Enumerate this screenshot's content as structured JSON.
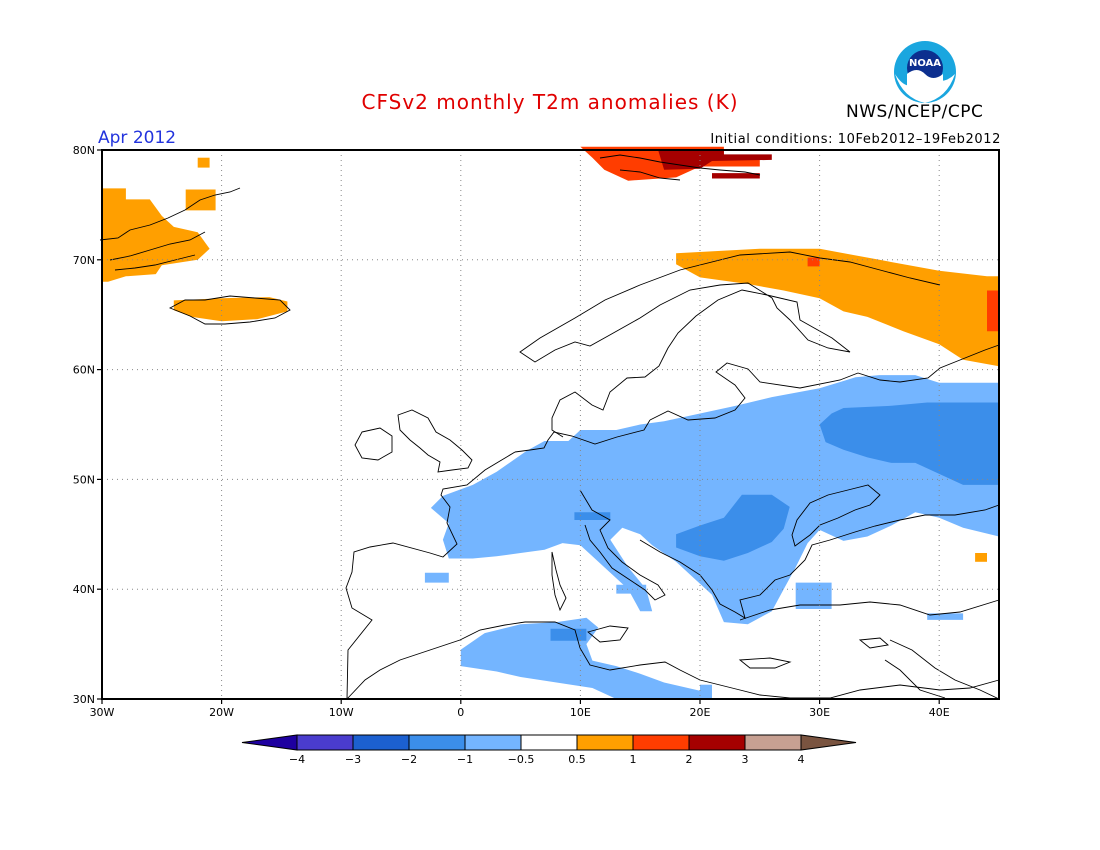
{
  "header": {
    "title": "CFSv2 monthly T2m anomalies (K)",
    "period": "Apr 2012",
    "initial_conditions": "Initial conditions: 10Feb2012–19Feb2012",
    "agency": "NWS/NCEP/CPC",
    "logo_text": "NOAA"
  },
  "map": {
    "lon_range": [
      -30,
      45
    ],
    "lat_range": [
      30,
      80
    ],
    "lat_labels": [
      {
        "lat": 80,
        "text": "80N"
      },
      {
        "lat": 70,
        "text": "70N"
      },
      {
        "lat": 60,
        "text": "60N"
      },
      {
        "lat": 50,
        "text": "50N"
      },
      {
        "lat": 40,
        "text": "40N"
      },
      {
        "lat": 30,
        "text": "30N"
      }
    ],
    "lon_labels": [
      {
        "lon": -30,
        "text": "30W"
      },
      {
        "lon": -20,
        "text": "20W"
      },
      {
        "lon": -10,
        "text": "10W"
      },
      {
        "lon": 0,
        "text": "0"
      },
      {
        "lon": 10,
        "text": "10E"
      },
      {
        "lon": 20,
        "text": "20E"
      },
      {
        "lon": 30,
        "text": "30E"
      },
      {
        "lon": 40,
        "text": "40E"
      }
    ],
    "grid": "dotted",
    "anomaly_regions": [
      {
        "name": "greenland-east-warm",
        "class": "0.5 to 1",
        "color": "#ff9f00",
        "lonlat": [
          [
            -30,
            76.5
          ],
          [
            -28,
            76.5
          ],
          [
            -28,
            75.5
          ],
          [
            -26,
            75.5
          ],
          [
            -25,
            74
          ],
          [
            -24,
            73
          ],
          [
            -22,
            72.5
          ],
          [
            -21,
            71
          ],
          [
            -22,
            70
          ],
          [
            -25,
            69.5
          ],
          [
            -25.5,
            68.7
          ],
          [
            -28,
            68.5
          ],
          [
            -29.5,
            68
          ],
          [
            -30,
            68
          ]
        ]
      },
      {
        "name": "greenland-north-warm",
        "class": "0.5 to 1",
        "color": "#ff9f00",
        "lonlat": [
          [
            -22,
            79.3
          ],
          [
            -21,
            79.3
          ],
          [
            -21,
            78.4
          ],
          [
            -22,
            78.4
          ]
        ]
      },
      {
        "name": "greenland-ne-warm",
        "class": "0.5 to 1",
        "color": "#ff9f00",
        "lonlat": [
          [
            -23,
            76.4
          ],
          [
            -20.5,
            76.4
          ],
          [
            -20.5,
            74.5
          ],
          [
            -23,
            74.5
          ]
        ]
      },
      {
        "name": "iceland-warm",
        "class": "0.5 to 1",
        "color": "#ff9f00",
        "lonlat": [
          [
            -24,
            66.3
          ],
          [
            -20,
            66.5
          ],
          [
            -16,
            66.6
          ],
          [
            -14.5,
            66.2
          ],
          [
            -14.5,
            65.3
          ],
          [
            -17,
            64.6
          ],
          [
            -20,
            64.4
          ],
          [
            -22.5,
            64.8
          ],
          [
            -24,
            65.4
          ]
        ]
      },
      {
        "name": "svalbard-warm",
        "class": "1 to 2",
        "color": "#ff3d00",
        "lonlat": [
          [
            10,
            80.3
          ],
          [
            22,
            80.3
          ],
          [
            22,
            79.4
          ],
          [
            25,
            79.3
          ],
          [
            25,
            78.5
          ],
          [
            20,
            78.5
          ],
          [
            18,
            77.5
          ],
          [
            14,
            77.2
          ],
          [
            12,
            78.2
          ],
          [
            11,
            79.3
          ]
        ]
      },
      {
        "name": "svalbard-core",
        "class": "2 to 3",
        "color": "#a50000",
        "lonlat": [
          [
            16.5,
            80
          ],
          [
            22,
            80
          ],
          [
            22,
            79.6
          ],
          [
            26,
            79.6
          ],
          [
            26,
            79.1
          ],
          [
            21,
            79
          ],
          [
            20,
            78.3
          ],
          [
            17,
            78.2
          ]
        ]
      },
      {
        "name": "svalbard-east",
        "class": "2 to 3",
        "color": "#a50000",
        "lonlat": [
          [
            21,
            77.9
          ],
          [
            25,
            77.9
          ],
          [
            25,
            77.4
          ],
          [
            21,
            77.4
          ]
        ]
      },
      {
        "name": "arctic-russia-warm",
        "class": "0.5 to 1",
        "color": "#ff9f00",
        "lonlat": [
          [
            18,
            70.6
          ],
          [
            25,
            71
          ],
          [
            30,
            71
          ],
          [
            35,
            70
          ],
          [
            40,
            69
          ],
          [
            44,
            68.5
          ],
          [
            45,
            68.5
          ],
          [
            45,
            60.3
          ],
          [
            42,
            60.9
          ],
          [
            40,
            62.3
          ],
          [
            37,
            63.5
          ],
          [
            34,
            64.8
          ],
          [
            32,
            65.3
          ],
          [
            30,
            66.5
          ],
          [
            27,
            67.2
          ],
          [
            24,
            67.8
          ],
          [
            20,
            68.4
          ],
          [
            18,
            69.6
          ]
        ]
      },
      {
        "name": "arctic-russia-hot1",
        "class": "1 to 2",
        "color": "#ff3d00",
        "lonlat": [
          [
            29,
            70.2
          ],
          [
            30,
            70.2
          ],
          [
            30,
            69.4
          ],
          [
            29,
            69.4
          ]
        ]
      },
      {
        "name": "arctic-russia-hot2",
        "class": "1 to 2",
        "color": "#ff3d00",
        "lonlat": [
          [
            44,
            67.2
          ],
          [
            45,
            67.2
          ],
          [
            45,
            63.5
          ],
          [
            44,
            63.5
          ]
        ]
      },
      {
        "name": "central-europe-cool",
        "class": "-1 to -0.5",
        "color": "#74b5ff",
        "lonlat": [
          [
            -1.5,
            48.5
          ],
          [
            1,
            49.5
          ],
          [
            3,
            50.7
          ],
          [
            5.5,
            52.6
          ],
          [
            7,
            53.5
          ],
          [
            9,
            53.5
          ],
          [
            10,
            54.5
          ],
          [
            13,
            54.5
          ],
          [
            15,
            55
          ],
          [
            17,
            55.3
          ],
          [
            20,
            56
          ],
          [
            23,
            56.7
          ],
          [
            26,
            57.5
          ],
          [
            30,
            58.3
          ],
          [
            33,
            59.3
          ],
          [
            35,
            59.5
          ],
          [
            38,
            59.5
          ],
          [
            40,
            58.8
          ],
          [
            45,
            58.8
          ],
          [
            45,
            44.8
          ],
          [
            42,
            45.6
          ],
          [
            40,
            46.5
          ],
          [
            38,
            47
          ],
          [
            36,
            45.8
          ],
          [
            34,
            44.8
          ],
          [
            32,
            44.4
          ],
          [
            30,
            45.4
          ],
          [
            29,
            44.2
          ],
          [
            28,
            42
          ],
          [
            27,
            40
          ],
          [
            26,
            38
          ],
          [
            24,
            36.8
          ],
          [
            22,
            37
          ],
          [
            21,
            39.5
          ],
          [
            19.5,
            41
          ],
          [
            18,
            42.5
          ],
          [
            16,
            44
          ],
          [
            15,
            45
          ],
          [
            13.5,
            45.6
          ],
          [
            12.5,
            44.5
          ],
          [
            14,
            42
          ],
          [
            15.5,
            40
          ],
          [
            16,
            38
          ],
          [
            15,
            38
          ],
          [
            14,
            40
          ],
          [
            13,
            41
          ],
          [
            11,
            43
          ],
          [
            10,
            44
          ],
          [
            8.5,
            44.2
          ],
          [
            7,
            43.6
          ],
          [
            5,
            43.3
          ],
          [
            3,
            43
          ],
          [
            1,
            42.8
          ],
          [
            -1,
            42.8
          ],
          [
            -1.5,
            44.5
          ],
          [
            -1,
            46
          ],
          [
            -2.5,
            47.4
          ]
        ]
      },
      {
        "name": "iberia-coast-cool",
        "class": "-1 to -0.5",
        "color": "#74b5ff",
        "lonlat": [
          [
            -3,
            41.5
          ],
          [
            -1,
            41.5
          ],
          [
            -1,
            40.6
          ],
          [
            -3,
            40.6
          ]
        ]
      },
      {
        "name": "italy-south-cool",
        "class": "-1 to -0.5",
        "color": "#74b5ff",
        "lonlat": [
          [
            13,
            40.4
          ],
          [
            15.5,
            40.4
          ],
          [
            15.5,
            39.6
          ],
          [
            13,
            39.6
          ]
        ]
      },
      {
        "name": "north-africa-cool",
        "class": "-1 to -0.5",
        "color": "#74b5ff",
        "lonlat": [
          [
            0,
            34.5
          ],
          [
            2,
            36
          ],
          [
            5,
            36.8
          ],
          [
            8,
            37
          ],
          [
            10.5,
            37.4
          ],
          [
            11.5,
            36.5
          ],
          [
            10.5,
            35
          ],
          [
            11,
            33.5
          ],
          [
            13,
            33
          ],
          [
            15,
            32.3
          ],
          [
            17,
            31.5
          ],
          [
            19,
            31
          ],
          [
            21,
            30.5
          ],
          [
            21,
            30
          ],
          [
            13,
            30
          ],
          [
            11,
            31
          ],
          [
            8,
            31.5
          ],
          [
            5,
            32
          ],
          [
            3,
            32.5
          ],
          [
            0,
            33
          ]
        ]
      },
      {
        "name": "libya-coast-cool",
        "class": "-1 to -0.5",
        "color": "#74b5ff",
        "lonlat": [
          [
            20,
            31.3
          ],
          [
            21,
            31.3
          ],
          [
            21,
            30
          ],
          [
            20,
            30
          ]
        ]
      },
      {
        "name": "turkey-cool",
        "class": "-1 to -0.5",
        "color": "#74b5ff",
        "lonlat": [
          [
            28,
            40.6
          ],
          [
            31,
            40.6
          ],
          [
            31,
            38.2
          ],
          [
            28,
            38.2
          ]
        ]
      },
      {
        "name": "caucasus-cool",
        "class": "-1 to -0.5",
        "color": "#74b5ff",
        "lonlat": [
          [
            39,
            37.8
          ],
          [
            42,
            37.8
          ],
          [
            42,
            37.2
          ],
          [
            39,
            37.2
          ]
        ]
      },
      {
        "name": "russia-cold",
        "class": "-2 to -1",
        "color": "#3b8eea",
        "lonlat": [
          [
            32,
            56.5
          ],
          [
            36,
            56.7
          ],
          [
            39,
            57
          ],
          [
            45,
            57
          ],
          [
            45,
            49.5
          ],
          [
            42,
            49.5
          ],
          [
            40,
            50.5
          ],
          [
            38,
            51.5
          ],
          [
            36,
            51.5
          ],
          [
            34,
            52
          ],
          [
            32,
            52.7
          ],
          [
            30.5,
            53.4
          ],
          [
            30,
            55
          ],
          [
            31,
            56
          ]
        ]
      },
      {
        "name": "balkans-cold",
        "class": "-2 to -1",
        "color": "#3b8eea",
        "lonlat": [
          [
            23.5,
            48.6
          ],
          [
            26,
            48.6
          ],
          [
            27.5,
            47.5
          ],
          [
            27,
            45.5
          ],
          [
            26,
            44.3
          ],
          [
            24,
            43.3
          ],
          [
            22,
            42.6
          ],
          [
            20,
            43
          ],
          [
            18,
            43.8
          ],
          [
            18,
            45
          ],
          [
            20,
            45.8
          ],
          [
            22,
            46.5
          ]
        ]
      },
      {
        "name": "alps-cold",
        "class": "-2 to -1",
        "color": "#3b8eea",
        "lonlat": [
          [
            9.5,
            47
          ],
          [
            12.5,
            47
          ],
          [
            12.5,
            46.3
          ],
          [
            9.5,
            46.3
          ]
        ]
      },
      {
        "name": "sicily-cold",
        "class": "-2 to -1",
        "color": "#3b8eea",
        "lonlat": [
          [
            7.5,
            36.4
          ],
          [
            10.5,
            36.4
          ],
          [
            10.5,
            35.3
          ],
          [
            7.5,
            35.3
          ]
        ]
      },
      {
        "name": "caucasus-warm-cell",
        "class": "0.5 to 1",
        "color": "#ff9f00",
        "lonlat": [
          [
            43,
            43.3
          ],
          [
            44,
            43.3
          ],
          [
            44,
            42.5
          ],
          [
            43,
            42.5
          ]
        ]
      }
    ]
  },
  "legend": {
    "labels": [
      "−4",
      "−3",
      "−2",
      "−1",
      "−0.5",
      "0.5",
      "1",
      "2",
      "3",
      "4"
    ],
    "low_cap_color": "#1e00a0",
    "high_cap_color": "#7a5440",
    "colors": [
      "#4a3ccd",
      "#1c60d0",
      "#3b8eea",
      "#74b5ff",
      "#ffffff",
      "#ff9f00",
      "#ff3d00",
      "#a50000",
      "#c7a092"
    ]
  }
}
